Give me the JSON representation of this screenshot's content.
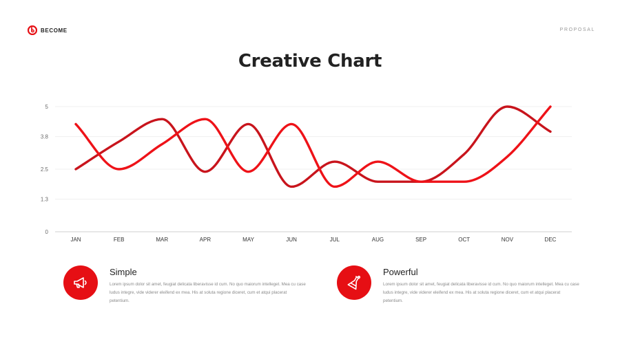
{
  "header": {
    "brand": "BECOME",
    "section": "PROPOSAL",
    "title": "Creative Chart"
  },
  "colors": {
    "accent": "#e60f14",
    "series_dark": "#c8141c",
    "series_bright": "#ee1218",
    "grid": "#efefef",
    "axis_text": "#6b6b6b"
  },
  "chart_data": {
    "type": "line",
    "smooth": true,
    "x": [
      "JAN",
      "FEB",
      "MAR",
      "APR",
      "MAY",
      "JUN",
      "JUL",
      "AUG",
      "SEP",
      "OCT",
      "NOV",
      "DEC"
    ],
    "y_ticks": [
      "0",
      "1.3",
      "2.5",
      "3.8",
      "5"
    ],
    "ylim": [
      0,
      5
    ],
    "grid": true,
    "legend": "none",
    "series": [
      {
        "color": "#c8141c",
        "values": [
          2.5,
          3.6,
          4.5,
          2.4,
          4.3,
          1.8,
          2.8,
          2.0,
          2.0,
          3.1,
          5.0,
          4.0
        ]
      },
      {
        "color": "#ee1218",
        "values": [
          4.3,
          2.5,
          3.5,
          4.5,
          2.4,
          4.3,
          1.8,
          2.8,
          2.0,
          2.0,
          3.0,
          5.0
        ]
      }
    ]
  },
  "features": [
    {
      "icon": "megaphone-icon",
      "title": "Simple",
      "text": "Lorem ipsum dolor sit amet, feugiat delicata liberavisse id cum. No quo maiorum intelleget. Mea cu case ludus integre, vide viderer eleifend ex mea. His at soluta regione diceret, cum et atqui placerat petentium."
    },
    {
      "icon": "flask-icon",
      "title": "Powerful",
      "text": "Lorem ipsum dolor sit amet, feugiat delicata liberavisse id cum. No quo maiorum intelleget. Mea cu case ludus integre, vide viderer eleifend ex mea. His at soluta regione diceret, cum et atqui placerat petentium."
    }
  ]
}
